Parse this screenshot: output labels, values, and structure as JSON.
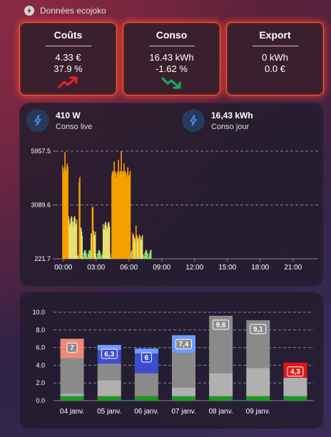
{
  "header": {
    "title": "Données ecojoko",
    "icon": "lightning-circle-icon"
  },
  "cards": [
    {
      "title": "Coûts",
      "line1": "4.33 €",
      "line2": "37.9 %",
      "trend": "up"
    },
    {
      "title": "Conso",
      "line1": "16.43 kWh",
      "line2": "-1.62 %",
      "trend": "down"
    },
    {
      "title": "Export",
      "line1": "0 kWh",
      "line2": "0.0 €",
      "trend": "none"
    }
  ],
  "live": {
    "power_value": "410 W",
    "power_label": "Conso live",
    "day_value": "16,43 kWh",
    "day_label": "Conso jour"
  },
  "colors": {
    "glow": "#ff5a3c",
    "trend_up": "#e8202a",
    "trend_down": "#1aa860",
    "orange": "#f5a000",
    "yellow": "#e8e070",
    "green": "#8fe070",
    "grey": "#8a8a8a",
    "light_grey": "#b0b0b0",
    "blue": "#3e4cd0",
    "light_blue": "#6f9bff",
    "salmon": "#f08878",
    "red": "#e01818",
    "green_base": "#1a9a20"
  },
  "chart_data": [
    {
      "type": "area",
      "y_ticks": [
        "5957.5",
        "3089.6",
        "221.7"
      ],
      "y_tick_values": [
        5957.5,
        3089.6,
        221.7
      ],
      "ylim": [
        221.7,
        5957.5
      ],
      "x_ticks": [
        "00:00",
        "03:00",
        "06:00",
        "09:00",
        "12:00",
        "15:00",
        "18:00",
        "21:00"
      ],
      "x_hours": [
        0,
        3,
        6,
        9,
        12,
        15,
        18,
        21
      ],
      "xlim": [
        -0.7,
        23.3
      ],
      "grid": true,
      "bands": [
        {
          "name": "orange",
          "color": "#f5a000",
          "from_h": 4.4,
          "to_h": 6.1,
          "level": 4900
        },
        {
          "name": "orange",
          "color": "#f5a000",
          "from_h": -0.1,
          "to_h": 0.4,
          "level": 5200
        },
        {
          "name": "orange",
          "color": "#f5a000",
          "from_h": 1.4,
          "to_h": 1.5,
          "level": 4600
        },
        {
          "name": "orange",
          "color": "#f5a000",
          "from_h": 2.6,
          "to_h": 2.7,
          "level": 3000
        }
      ],
      "spikes": [
        {
          "h": 4.6,
          "v": 5400
        },
        {
          "h": 5.0,
          "v": 5500
        },
        {
          "h": 5.25,
          "v": 5957.5
        },
        {
          "h": 5.5,
          "v": 5300
        },
        {
          "h": 5.85,
          "v": 5100
        },
        {
          "h": 0.1,
          "v": 5900
        },
        {
          "h": 0.3,
          "v": 5300
        },
        {
          "h": 6.3,
          "v": 1600
        },
        {
          "h": 6.6,
          "v": 2000
        },
        {
          "h": 6.9,
          "v": 1500
        }
      ],
      "yellow_blocks": [
        {
          "from_h": 0.0,
          "to_h": 1.25,
          "level": 2500
        },
        {
          "from_h": 1.5,
          "to_h": 1.75,
          "level": 1900
        },
        {
          "from_h": 2.5,
          "to_h": 2.9,
          "level": 1800
        },
        {
          "from_h": 3.6,
          "to_h": 4.2,
          "level": 2200
        },
        {
          "from_h": 6.3,
          "to_h": 7.2,
          "level": 1500
        }
      ],
      "green_noise": [
        {
          "from_h": -0.1,
          "to_h": 8.0,
          "level": 700
        }
      ]
    },
    {
      "type": "bar",
      "y_ticks": [
        "10.0",
        "8.0",
        "6.0",
        "4.0",
        "2.0",
        "0.0"
      ],
      "y_tick_values": [
        10,
        8,
        6,
        4,
        2,
        0
      ],
      "ylim": [
        0,
        10
      ],
      "grid": true,
      "categories": [
        "04 janv.",
        "05 janv.",
        "06 janv.",
        "07 janv.",
        "08 janv.",
        "09 janv.",
        "10 janv."
      ],
      "series": [
        {
          "values": [
            0.5,
            0.5,
            0.5,
            0.5,
            0.5,
            0.5,
            0.5
          ],
          "color": "#1a9a20"
        },
        {
          "values": [
            0.3,
            1.8,
            0.0,
            1.0,
            2.6,
            3.2,
            2.1
          ],
          "color": "#b0b0b0"
        },
        {
          "values": [
            4.0,
            1.9,
            2.6,
            3.9,
            6.5,
            5.4,
            0.0
          ],
          "color": "#8a8a8a"
        },
        {
          "values": [
            0.0,
            0.0,
            0.0,
            0.0,
            0.0,
            0.0,
            0.0
          ],
          "color": "#3e4cd0"
        },
        {
          "values": [
            2.2,
            2.1,
            2.8,
            2.0,
            0.0,
            0.0,
            1.7
          ],
          "color": "#f08878"
        }
      ],
      "totals": [
        7.0,
        6.3,
        5.9,
        7.4,
        9.6,
        9.1,
        4.3
      ],
      "top_colors": [
        "#f08878",
        "#3e4cd0",
        "#3e4cd0",
        "#6f9bff",
        "#8a8a8a",
        "#8a8a8a",
        "#e01818"
      ],
      "labels": [
        "7",
        "6,3",
        "6",
        "7,4",
        "9,6",
        "9,1",
        "4,3"
      ],
      "label_styles": [
        "grey",
        "blue",
        "blue",
        "grey",
        "grey",
        "grey",
        "red"
      ]
    }
  ]
}
